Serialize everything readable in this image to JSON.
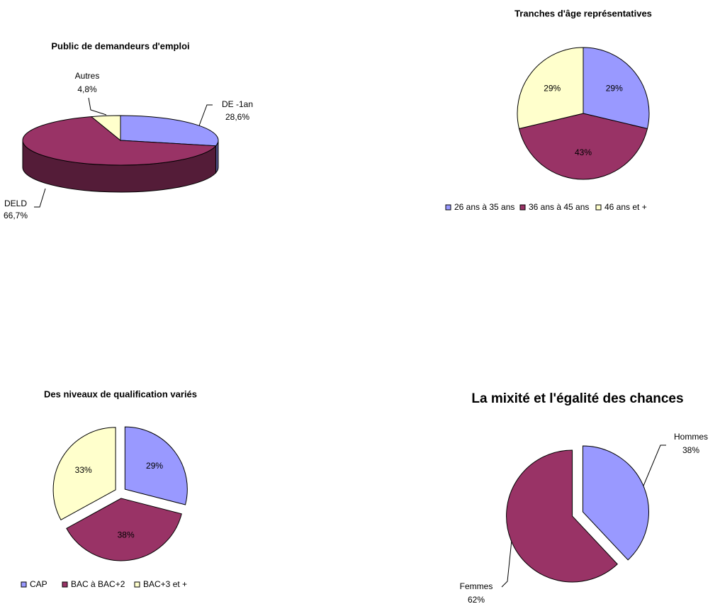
{
  "chart_data": [
    {
      "type": "pie",
      "title": "Public de demandeurs d'emploi",
      "three_d": true,
      "categories": [
        "DE -1an",
        "DELD",
        "Autres"
      ],
      "values": [
        28.6,
        66.7,
        4.8
      ],
      "value_labels": [
        "28,6%",
        "66,7%",
        "4,8%"
      ],
      "colors": [
        "#9999ff",
        "#993366",
        "#ffffcc"
      ]
    },
    {
      "type": "pie",
      "title": "Tranches d'âge représentatives",
      "legend": "bottom",
      "categories": [
        "26 ans à 35 ans",
        "36 ans à 45 ans",
        "46 ans et +"
      ],
      "values": [
        29,
        43,
        29
      ],
      "value_labels": [
        "29%",
        "43%",
        "29%"
      ],
      "colors": [
        "#9999ff",
        "#993366",
        "#ffffcc"
      ]
    },
    {
      "type": "pie",
      "title": "Des niveaux de qualification variés",
      "legend": "bottom",
      "explode": true,
      "categories": [
        "CAP",
        "BAC à BAC+2",
        "BAC+3 et +"
      ],
      "values": [
        29,
        38,
        33
      ],
      "value_labels": [
        "29%",
        "38%",
        "33%"
      ],
      "colors": [
        "#9999ff",
        "#993366",
        "#ffffcc"
      ]
    },
    {
      "type": "pie",
      "title": "La mixité et l'égalité des chances",
      "explode": true,
      "categories": [
        "Hommes",
        "Femmes"
      ],
      "values": [
        38,
        62
      ],
      "value_labels": [
        "38%",
        "62%"
      ],
      "colors": [
        "#9999ff",
        "#993366"
      ]
    }
  ]
}
